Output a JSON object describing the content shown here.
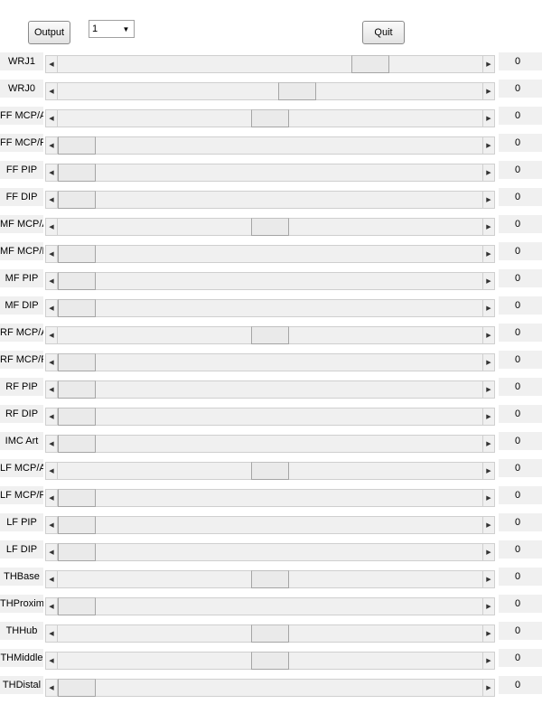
{
  "toolbar": {
    "output_label": "Output",
    "quit_label": "Quit",
    "selector_value": "1"
  },
  "joints": [
    {
      "name": "WRJ1",
      "value": "0",
      "level": 0.76
    },
    {
      "name": "WRJ0",
      "value": "0",
      "level": 0.57
    },
    {
      "name": "FF MCP/A",
      "value": "0",
      "level": 0.5
    },
    {
      "name": "FF MCP/F",
      "value": "0",
      "level": 0
    },
    {
      "name": "FF PIP",
      "value": "0",
      "level": 0
    },
    {
      "name": "FF DIP",
      "value": "0",
      "level": 0
    },
    {
      "name": "MF MCP/A",
      "value": "0",
      "level": 0.5
    },
    {
      "name": "MF MCP/F",
      "value": "0",
      "level": 0
    },
    {
      "name": "MF PIP",
      "value": "0",
      "level": 0
    },
    {
      "name": "MF DIP",
      "value": "0",
      "level": 0
    },
    {
      "name": "RF MCP/A",
      "value": "0",
      "level": 0.5
    },
    {
      "name": "RF MCP/F",
      "value": "0",
      "level": 0
    },
    {
      "name": "RF PIP",
      "value": "0",
      "level": 0
    },
    {
      "name": "RF DIP",
      "value": "0",
      "level": 0
    },
    {
      "name": "IMC Art",
      "value": "0",
      "level": 0
    },
    {
      "name": "LF MCP/A",
      "value": "0",
      "level": 0.5
    },
    {
      "name": "LF MCP/F",
      "value": "0",
      "level": 0
    },
    {
      "name": "LF PIP",
      "value": "0",
      "level": 0
    },
    {
      "name": "LF DIP",
      "value": "0",
      "level": 0
    },
    {
      "name": "THBase",
      "value": "0",
      "level": 0.5
    },
    {
      "name": "THProximal",
      "value": "0",
      "level": 0
    },
    {
      "name": "THHub",
      "value": "0",
      "level": 0.5
    },
    {
      "name": "THMiddle",
      "value": "0",
      "level": 0.5
    },
    {
      "name": "THDistal",
      "value": "0",
      "level": 0
    }
  ]
}
